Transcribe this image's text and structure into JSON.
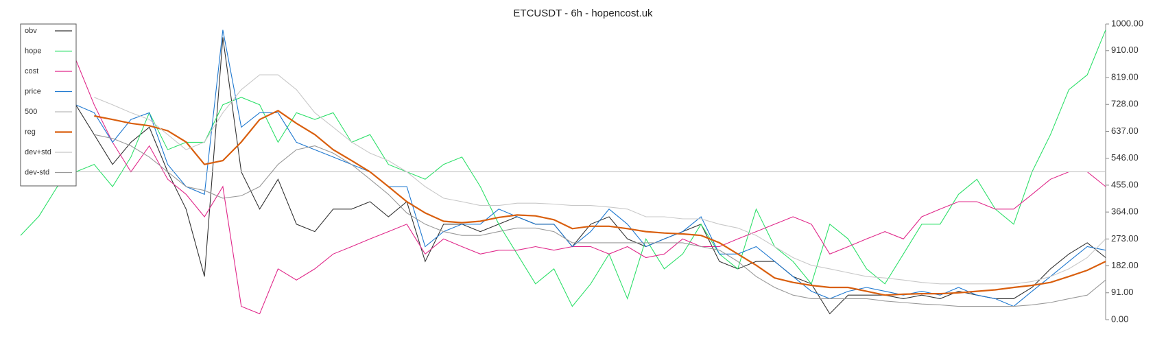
{
  "chart_data": {
    "type": "line",
    "title": "ETCUSDT - 6h - hopencost.uk",
    "categories": [
      null,
      null,
      null,
      null,
      null,
      null,
      null,
      null,
      null,
      null,
      null,
      null,
      null,
      null,
      null,
      null,
      null,
      null,
      null,
      null,
      null,
      null,
      null,
      null,
      null,
      null,
      null,
      null,
      null,
      null,
      null,
      null,
      null,
      null,
      null,
      null,
      null,
      null,
      null,
      null,
      null,
      null,
      null,
      null,
      null,
      null,
      null,
      null,
      null,
      null,
      null,
      null,
      null,
      null,
      null,
      null,
      null,
      null,
      null,
      null
    ],
    "ylim": [
      0,
      1000
    ],
    "yticks": [
      {
        "value": 0,
        "label": "0.00"
      },
      {
        "value": 91,
        "label": "91.00"
      },
      {
        "value": 182,
        "label": "182.00"
      },
      {
        "value": 273,
        "label": "273.00"
      },
      {
        "value": 364,
        "label": "364.00"
      },
      {
        "value": 455,
        "label": "455.00"
      },
      {
        "value": 546,
        "label": "546.00"
      },
      {
        "value": 637,
        "label": "637.00"
      },
      {
        "value": 728,
        "label": "728.00"
      },
      {
        "value": 819,
        "label": "819.00"
      },
      {
        "value": 910,
        "label": "910.00"
      },
      {
        "value": 1000,
        "label": "1000.00"
      }
    ],
    "legend": "upper left",
    "series": [
      {
        "name": "obv",
        "color": "#333333",
        "values": [
          null,
          null,
          null,
          727,
          626,
          525,
          600,
          651,
          500,
          374,
          146,
          955,
          500,
          374,
          475,
          323,
          298,
          374,
          374,
          399,
          348,
          399,
          197,
          323,
          323,
          298,
          323,
          348,
          323,
          323,
          247,
          323,
          348,
          273,
          247,
          273,
          298,
          323,
          197,
          172,
          197,
          197,
          146,
          121,
          20,
          83,
          83,
          83,
          71,
          83,
          71,
          96,
          83,
          71,
          71,
          109,
          172,
          222,
          260,
          210
        ]
      },
      {
        "name": "hope",
        "color": "#2ee06a",
        "values": [
          285,
          350,
          450,
          500,
          525,
          450,
          550,
          700,
          575,
          600,
          600,
          727,
          752,
          727,
          600,
          700,
          677,
          700,
          600,
          626,
          525,
          500,
          475,
          525,
          550,
          450,
          323,
          222,
          121,
          172,
          45,
          121,
          222,
          71,
          273,
          172,
          222,
          323,
          222,
          172,
          374,
          247,
          197,
          121,
          323,
          273,
          172,
          121,
          222,
          323,
          323,
          424,
          475,
          374,
          323,
          500,
          626,
          778,
          828,
          980
        ]
      },
      {
        "name": "cost",
        "color": "#e0288a",
        "values": [
          null,
          null,
          null,
          880,
          727,
          600,
          500,
          588,
          475,
          424,
          348,
          450,
          45,
          20,
          172,
          134,
          172,
          222,
          247,
          273,
          298,
          323,
          222,
          273,
          247,
          222,
          235,
          235,
          247,
          235,
          247,
          247,
          222,
          247,
          210,
          222,
          273,
          247,
          247,
          273,
          298,
          323,
          348,
          323,
          222,
          247,
          273,
          298,
          273,
          348,
          374,
          399,
          399,
          374,
          374,
          424,
          475,
          500,
          500,
          450
        ]
      },
      {
        "name": "price",
        "color": "#1e78d0",
        "values": [
          null,
          null,
          null,
          727,
          700,
          600,
          677,
          700,
          525,
          450,
          424,
          980,
          651,
          700,
          700,
          600,
          575,
          550,
          525,
          500,
          450,
          450,
          247,
          298,
          323,
          323,
          374,
          348,
          323,
          323,
          247,
          298,
          374,
          323,
          247,
          273,
          298,
          348,
          222,
          222,
          247,
          197,
          146,
          96,
          71,
          96,
          109,
          96,
          83,
          96,
          83,
          109,
          83,
          71,
          45,
          96,
          146,
          197,
          247,
          235
        ]
      },
      {
        "name": "500",
        "color": "#bbbbbb",
        "values": [
          500,
          500,
          500,
          500,
          500,
          500,
          500,
          500,
          500,
          500,
          500,
          500,
          500,
          500,
          500,
          500,
          500,
          500,
          500,
          500,
          500,
          500,
          500,
          500,
          500,
          500,
          500,
          500,
          500,
          500,
          500,
          500,
          500,
          500,
          500,
          500,
          500,
          500,
          500,
          500,
          500,
          500,
          500,
          500,
          500,
          500,
          500,
          500,
          500,
          500,
          500,
          500,
          500,
          500,
          500,
          500,
          500,
          500,
          500,
          500
        ]
      },
      {
        "name": "reg",
        "color": "#d95f0e",
        "values": [
          null,
          null,
          null,
          null,
          689,
          677,
          664,
          656,
          639,
          601,
          525,
          538,
          601,
          677,
          707,
          664,
          626,
          575,
          538,
          500,
          450,
          399,
          361,
          333,
          328,
          333,
          346,
          354,
          351,
          338,
          308,
          316,
          316,
          308,
          298,
          293,
          290,
          285,
          260,
          222,
          184,
          141,
          126,
          116,
          109,
          109,
          96,
          83,
          86,
          88,
          88,
          91,
          96,
          101,
          109,
          116,
          126,
          146,
          167,
          197
        ]
      },
      {
        "name": "dev+std",
        "color": "#c8c8c8",
        "values": [
          null,
          null,
          null,
          null,
          752,
          727,
          700,
          677,
          626,
          575,
          601,
          700,
          778,
          828,
          828,
          778,
          700,
          651,
          601,
          563,
          538,
          500,
          450,
          411,
          399,
          386,
          386,
          394,
          394,
          391,
          386,
          386,
          381,
          374,
          348,
          348,
          341,
          341,
          323,
          310,
          285,
          247,
          210,
          184,
          172,
          159,
          146,
          141,
          134,
          126,
          121,
          121,
          121,
          121,
          121,
          129,
          146,
          172,
          210,
          273
        ]
      },
      {
        "name": "dev-std",
        "color": "#999999",
        "values": [
          null,
          null,
          null,
          null,
          626,
          613,
          588,
          550,
          500,
          450,
          437,
          411,
          419,
          450,
          525,
          575,
          588,
          563,
          525,
          475,
          424,
          361,
          323,
          298,
          285,
          285,
          298,
          310,
          310,
          298,
          260,
          260,
          260,
          260,
          260,
          260,
          260,
          247,
          235,
          197,
          146,
          109,
          83,
          71,
          71,
          71,
          71,
          63,
          58,
          53,
          50,
          45,
          45,
          45,
          45,
          50,
          58,
          71,
          83,
          134
        ]
      }
    ]
  }
}
